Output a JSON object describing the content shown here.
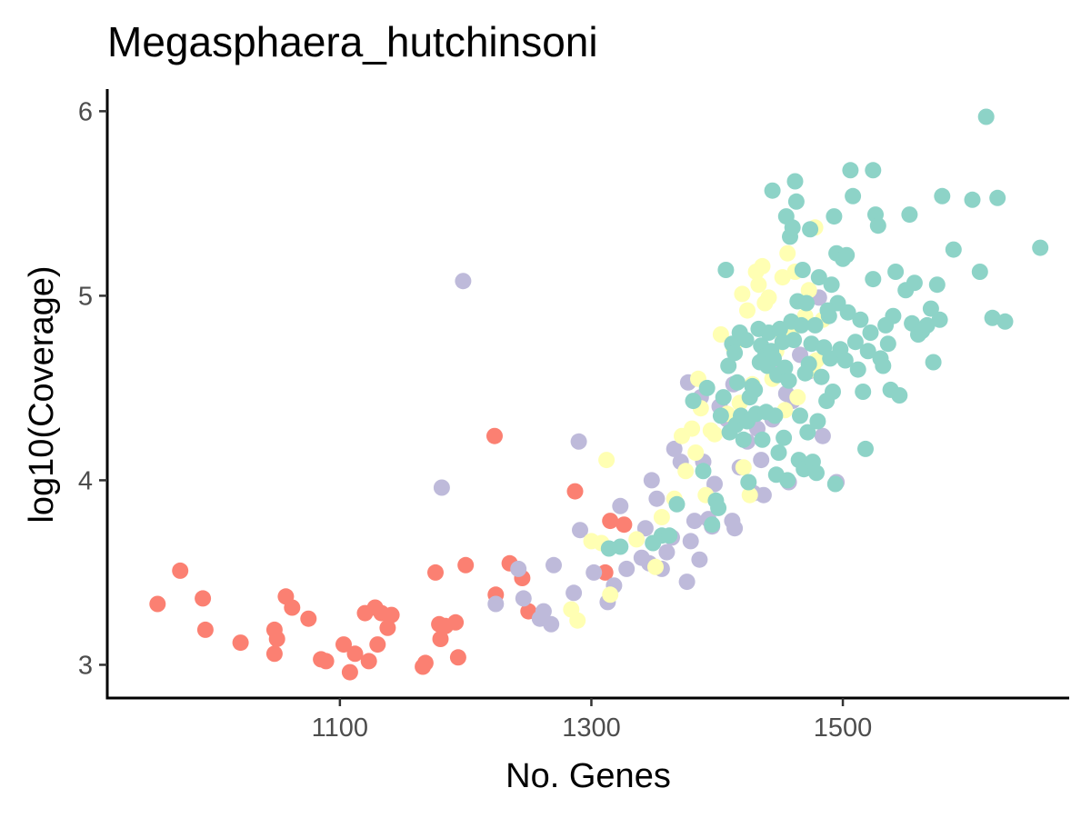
{
  "chart_data": {
    "type": "scatter",
    "title": "Megasphaera_hutchinsoni",
    "xlabel": "No. Genes",
    "ylabel": "log10(Coverage)",
    "xlim": [
      915,
      1680
    ],
    "ylim": [
      2.82,
      6.12
    ],
    "x_ticks": [
      1100,
      1300,
      1500
    ],
    "y_ticks": [
      3,
      4,
      5,
      6
    ],
    "grid": false,
    "legend": "none",
    "series": [
      {
        "color": "#FB8072",
        "points": [
          [
            955,
            3.33
          ],
          [
            973,
            3.51
          ],
          [
            991,
            3.36
          ],
          [
            993,
            3.19
          ],
          [
            1021,
            3.12
          ],
          [
            1048,
            3.19
          ],
          [
            1048,
            3.06
          ],
          [
            1050,
            3.14
          ],
          [
            1057,
            3.37
          ],
          [
            1062,
            3.31
          ],
          [
            1075,
            3.25
          ],
          [
            1085,
            3.03
          ],
          [
            1089,
            3.02
          ],
          [
            1103,
            3.11
          ],
          [
            1108,
            2.96
          ],
          [
            1112,
            3.06
          ],
          [
            1120,
            3.28
          ],
          [
            1123,
            3.02
          ],
          [
            1128,
            3.31
          ],
          [
            1130,
            3.11
          ],
          [
            1133,
            3.28
          ],
          [
            1138,
            3.2
          ],
          [
            1141,
            3.27
          ],
          [
            1166,
            2.99
          ],
          [
            1168,
            3.01
          ],
          [
            1176,
            3.5
          ],
          [
            1179,
            3.22
          ],
          [
            1180,
            3.14
          ],
          [
            1184,
            3.21
          ],
          [
            1192,
            3.23
          ],
          [
            1194,
            3.04
          ],
          [
            1200,
            3.54
          ],
          [
            1223,
            4.24
          ],
          [
            1224,
            3.38
          ],
          [
            1235,
            3.55
          ],
          [
            1245,
            3.47
          ],
          [
            1250,
            3.29
          ],
          [
            1287,
            3.94
          ],
          [
            1311,
            3.5
          ],
          [
            1315,
            3.78
          ],
          [
            1326,
            3.76
          ]
        ]
      },
      {
        "color": "#BEBADA",
        "points": [
          [
            1198,
            5.08
          ],
          [
            1181,
            3.96
          ],
          [
            1224,
            3.33
          ],
          [
            1242,
            3.52
          ],
          [
            1246,
            3.36
          ],
          [
            1259,
            3.25
          ],
          [
            1262,
            3.29
          ],
          [
            1268,
            3.22
          ],
          [
            1270,
            3.54
          ],
          [
            1286,
            3.39
          ],
          [
            1290,
            4.21
          ],
          [
            1291,
            3.73
          ],
          [
            1302,
            3.5
          ],
          [
            1313,
            3.34
          ],
          [
            1318,
            3.43
          ],
          [
            1323,
            3.86
          ],
          [
            1328,
            3.52
          ],
          [
            1340,
            3.58
          ],
          [
            1343,
            3.74
          ],
          [
            1346,
            3.55
          ],
          [
            1348,
            4.0
          ],
          [
            1352,
            3.9
          ],
          [
            1356,
            3.52
          ],
          [
            1360,
            3.61
          ],
          [
            1364,
            3.69
          ],
          [
            1366,
            4.17
          ],
          [
            1371,
            4.1
          ],
          [
            1376,
            3.45
          ],
          [
            1377,
            4.53
          ],
          [
            1379,
            3.67
          ],
          [
            1382,
            3.78
          ],
          [
            1386,
            3.57
          ],
          [
            1389,
            4.1
          ],
          [
            1393,
            3.79
          ],
          [
            1396,
            3.75
          ],
          [
            1398,
            3.98
          ],
          [
            1402,
            4.4
          ],
          [
            1408,
            4.33
          ],
          [
            1412,
            3.78
          ],
          [
            1414,
            3.74
          ],
          [
            1418,
            4.07
          ],
          [
            1424,
            4.21
          ],
          [
            1429,
            3.93
          ],
          [
            1432,
            4.28
          ],
          [
            1435,
            4.11
          ],
          [
            1437,
            3.92
          ],
          [
            1444,
            4.33
          ],
          [
            1450,
            4.6
          ],
          [
            1455,
            4.47
          ],
          [
            1457,
            3.99
          ],
          [
            1460,
            4.43
          ],
          [
            1473,
            4.59
          ],
          [
            1481,
            4.99
          ],
          [
            1484,
            4.24
          ],
          [
            1495,
            3.99
          ],
          [
            1387,
            4.45
          ],
          [
            1413,
            4.52
          ],
          [
            1466,
            4.68
          ]
        ]
      },
      {
        "color": "#FFFFB3",
        "points": [
          [
            1289,
            3.24
          ],
          [
            1284,
            3.3
          ],
          [
            1300,
            3.67
          ],
          [
            1308,
            3.66
          ],
          [
            1312,
            4.11
          ],
          [
            1315,
            3.38
          ],
          [
            1336,
            3.68
          ],
          [
            1351,
            3.53
          ],
          [
            1356,
            3.8
          ],
          [
            1366,
            3.9
          ],
          [
            1372,
            4.24
          ],
          [
            1375,
            4.05
          ],
          [
            1380,
            4.28
          ],
          [
            1383,
            4.15
          ],
          [
            1385,
            4.55
          ],
          [
            1387,
            4.39
          ],
          [
            1391,
            3.92
          ],
          [
            1395,
            4.27
          ],
          [
            1398,
            4.25
          ],
          [
            1403,
            4.79
          ],
          [
            1408,
            4.36
          ],
          [
            1413,
            4.72
          ],
          [
            1418,
            4.42
          ],
          [
            1420,
            5.01
          ],
          [
            1421,
            4.07
          ],
          [
            1424,
            4.92
          ],
          [
            1426,
            3.92
          ],
          [
            1428,
            4.52
          ],
          [
            1431,
            5.13
          ],
          [
            1433,
            5.06
          ],
          [
            1436,
            5.16
          ],
          [
            1438,
            4.96
          ],
          [
            1441,
            4.99
          ],
          [
            1444,
            4.55
          ],
          [
            1447,
            4.7
          ],
          [
            1452,
            5.1
          ],
          [
            1454,
            4.38
          ],
          [
            1456,
            5.23
          ],
          [
            1460,
            4.82
          ],
          [
            1464,
            4.45
          ],
          [
            1470,
            4.89
          ],
          [
            1473,
            5.03
          ],
          [
            1476,
            4.6
          ],
          [
            1479,
            4.65
          ],
          [
            1484,
            4.87
          ],
          [
            1478,
            5.37
          ],
          [
            1452,
            4.8
          ],
          [
            1462,
            5.13
          ]
        ]
      },
      {
        "color": "#8DD3C7",
        "points": [
          [
            1314,
            3.63
          ],
          [
            1323,
            3.64
          ],
          [
            1349,
            3.66
          ],
          [
            1356,
            3.7
          ],
          [
            1362,
            3.7
          ],
          [
            1368,
            3.87
          ],
          [
            1381,
            4.43
          ],
          [
            1389,
            4.05
          ],
          [
            1392,
            4.5
          ],
          [
            1396,
            3.76
          ],
          [
            1399,
            3.89
          ],
          [
            1401,
            3.85
          ],
          [
            1403,
            4.35
          ],
          [
            1405,
            4.45
          ],
          [
            1407,
            5.14
          ],
          [
            1409,
            4.62
          ],
          [
            1410,
            4.26
          ],
          [
            1412,
            4.74
          ],
          [
            1414,
            4.69
          ],
          [
            1415,
            4.3
          ],
          [
            1416,
            4.53
          ],
          [
            1418,
            4.8
          ],
          [
            1419,
            4.35
          ],
          [
            1421,
            4.22
          ],
          [
            1423,
            4.76
          ],
          [
            1424,
            4.32
          ],
          [
            1425,
            3.99
          ],
          [
            1426,
            4.45
          ],
          [
            1428,
            4.51
          ],
          [
            1430,
            4.49
          ],
          [
            1431,
            4.36
          ],
          [
            1433,
            4.82
          ],
          [
            1434,
            4.64
          ],
          [
            1435,
            4.73
          ],
          [
            1436,
            4.22
          ],
          [
            1438,
            4.67
          ],
          [
            1439,
            4.37
          ],
          [
            1440,
            4.62
          ],
          [
            1441,
            4.8
          ],
          [
            1443,
            4.7
          ],
          [
            1444,
            5.57
          ],
          [
            1445,
            4.66
          ],
          [
            1446,
            4.35
          ],
          [
            1447,
            4.03
          ],
          [
            1448,
            4.57
          ],
          [
            1449,
            4.15
          ],
          [
            1450,
            4.82
          ],
          [
            1452,
            4.75
          ],
          [
            1453,
            4.23
          ],
          [
            1454,
            4.61
          ],
          [
            1455,
            5.43
          ],
          [
            1456,
            4.0
          ],
          [
            1457,
            4.54
          ],
          [
            1458,
            5.32
          ],
          [
            1459,
            4.86
          ],
          [
            1460,
            5.37
          ],
          [
            1461,
            4.76
          ],
          [
            1462,
            5.62
          ],
          [
            1463,
            5.51
          ],
          [
            1464,
            4.97
          ],
          [
            1465,
            4.11
          ],
          [
            1466,
            4.35
          ],
          [
            1467,
            4.84
          ],
          [
            1468,
            5.14
          ],
          [
            1469,
            4.06
          ],
          [
            1470,
            4.58
          ],
          [
            1471,
            4.96
          ],
          [
            1472,
            4.26
          ],
          [
            1473,
            4.63
          ],
          [
            1474,
            5.36
          ],
          [
            1475,
            4.74
          ],
          [
            1476,
            4.1
          ],
          [
            1478,
            4.84
          ],
          [
            1479,
            4.04
          ],
          [
            1480,
            4.32
          ],
          [
            1481,
            5.1
          ],
          [
            1483,
            4.56
          ],
          [
            1485,
            4.72
          ],
          [
            1487,
            4.43
          ],
          [
            1489,
            4.89
          ],
          [
            1490,
            4.66
          ],
          [
            1491,
            5.06
          ],
          [
            1492,
            4.48
          ],
          [
            1493,
            5.43
          ],
          [
            1494,
            3.98
          ],
          [
            1495,
            5.23
          ],
          [
            1496,
            4.96
          ],
          [
            1498,
            4.71
          ],
          [
            1500,
            5.2
          ],
          [
            1502,
            4.65
          ],
          [
            1504,
            4.91
          ],
          [
            1506,
            5.68
          ],
          [
            1508,
            5.54
          ],
          [
            1510,
            4.75
          ],
          [
            1512,
            4.6
          ],
          [
            1514,
            4.87
          ],
          [
            1516,
            4.48
          ],
          [
            1518,
            4.17
          ],
          [
            1520,
            4.7
          ],
          [
            1522,
            4.8
          ],
          [
            1524,
            5.68
          ],
          [
            1526,
            5.44
          ],
          [
            1528,
            5.38
          ],
          [
            1530,
            4.66
          ],
          [
            1532,
            4.62
          ],
          [
            1534,
            4.84
          ],
          [
            1536,
            4.74
          ],
          [
            1538,
            4.49
          ],
          [
            1540,
            4.89
          ],
          [
            1542,
            5.13
          ],
          [
            1545,
            4.46
          ],
          [
            1550,
            5.03
          ],
          [
            1553,
            5.44
          ],
          [
            1555,
            4.85
          ],
          [
            1557,
            5.07
          ],
          [
            1560,
            4.79
          ],
          [
            1563,
            4.81
          ],
          [
            1567,
            4.84
          ],
          [
            1570,
            4.93
          ],
          [
            1572,
            4.64
          ],
          [
            1575,
            5.06
          ],
          [
            1577,
            4.87
          ],
          [
            1579,
            5.54
          ],
          [
            1588,
            5.25
          ],
          [
            1603,
            5.52
          ],
          [
            1609,
            5.13
          ],
          [
            1614,
            5.97
          ],
          [
            1619,
            4.88
          ],
          [
            1623,
            5.53
          ],
          [
            1629,
            4.86
          ],
          [
            1657,
            5.26
          ],
          [
            1503,
            5.22
          ],
          [
            1524,
            5.09
          ],
          [
            1488,
            4.92
          ]
        ]
      }
    ]
  }
}
